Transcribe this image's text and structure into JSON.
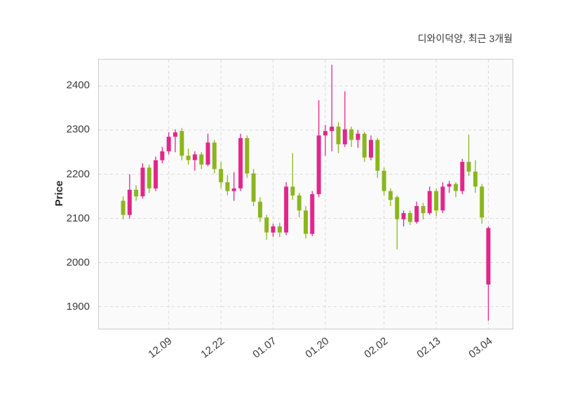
{
  "chart_data": {
    "type": "candlestick",
    "title": "디와이덕양, 최근 3개월",
    "ylabel": "Price",
    "ylim": [
      1850,
      2460
    ],
    "yticks": [
      1900,
      2000,
      2100,
      2200,
      2300,
      2400
    ],
    "xtick_labels": [
      "12.09",
      "12.22",
      "01.07",
      "01.20",
      "02.02",
      "02.13",
      "03.04"
    ],
    "xtick_indices": [
      7,
      15,
      23,
      31,
      40,
      48,
      56
    ],
    "up_color": "#e2268b",
    "down_color": "#8ab71e",
    "grid": true,
    "legend": "none",
    "ohlc": [
      [
        2140,
        2150,
        2098,
        2108
      ],
      [
        2108,
        2200,
        2100,
        2165
      ],
      [
        2165,
        2175,
        2140,
        2150
      ],
      [
        2150,
        2225,
        2145,
        2215
      ],
      [
        2215,
        2222,
        2158,
        2168
      ],
      [
        2168,
        2240,
        2162,
        2232
      ],
      [
        2232,
        2262,
        2225,
        2252
      ],
      [
        2252,
        2295,
        2245,
        2285
      ],
      [
        2285,
        2302,
        2250,
        2295
      ],
      [
        2298,
        2305,
        2232,
        2242
      ],
      [
        2242,
        2258,
        2222,
        2232
      ],
      [
        2232,
        2252,
        2208,
        2245
      ],
      [
        2245,
        2250,
        2212,
        2222
      ],
      [
        2222,
        2292,
        2218,
        2272
      ],
      [
        2272,
        2278,
        2202,
        2212
      ],
      [
        2212,
        2228,
        2168,
        2182
      ],
      [
        2182,
        2198,
        2152,
        2162
      ],
      [
        2162,
        2205,
        2140,
        2168
      ],
      [
        2168,
        2292,
        2162,
        2282
      ],
      [
        2282,
        2288,
        2192,
        2202
      ],
      [
        2202,
        2212,
        2128,
        2138
      ],
      [
        2138,
        2148,
        2092,
        2102
      ],
      [
        2102,
        2108,
        2052,
        2068
      ],
      [
        2068,
        2088,
        2058,
        2082
      ],
      [
        2082,
        2090,
        2058,
        2068
      ],
      [
        2068,
        2182,
        2062,
        2172
      ],
      [
        2172,
        2248,
        2142,
        2152
      ],
      [
        2152,
        2158,
        2102,
        2118
      ],
      [
        2118,
        2128,
        2055,
        2065
      ],
      [
        2065,
        2162,
        2060,
        2155
      ],
      [
        2155,
        2368,
        2148,
        2288
      ],
      [
        2288,
        2312,
        2242,
        2298
      ],
      [
        2298,
        2448,
        2252,
        2308
      ],
      [
        2308,
        2318,
        2248,
        2268
      ],
      [
        2268,
        2388,
        2262,
        2302
      ],
      [
        2302,
        2308,
        2262,
        2278
      ],
      [
        2278,
        2300,
        2260,
        2292
      ],
      [
        2292,
        2296,
        2228,
        2238
      ],
      [
        2238,
        2288,
        2232,
        2278
      ],
      [
        2278,
        2282,
        2192,
        2208
      ],
      [
        2208,
        2215,
        2152,
        2162
      ],
      [
        2162,
        2168,
        2128,
        2142
      ],
      [
        2148,
        2152,
        2030,
        2098
      ],
      [
        2098,
        2118,
        2082,
        2112
      ],
      [
        2112,
        2118,
        2085,
        2092
      ],
      [
        2092,
        2138,
        2088,
        2128
      ],
      [
        2128,
        2135,
        2098,
        2112
      ],
      [
        2112,
        2172,
        2108,
        2162
      ],
      [
        2162,
        2168,
        2105,
        2118
      ],
      [
        2118,
        2182,
        2112,
        2172
      ],
      [
        2172,
        2185,
        2158,
        2178
      ],
      [
        2178,
        2182,
        2148,
        2162
      ],
      [
        2162,
        2235,
        2155,
        2228
      ],
      [
        2228,
        2290,
        2196,
        2206
      ],
      [
        2206,
        2232,
        2158,
        2172
      ],
      [
        2172,
        2178,
        2088,
        2102
      ],
      [
        1950,
        2082,
        1868,
        2078
      ]
    ]
  }
}
